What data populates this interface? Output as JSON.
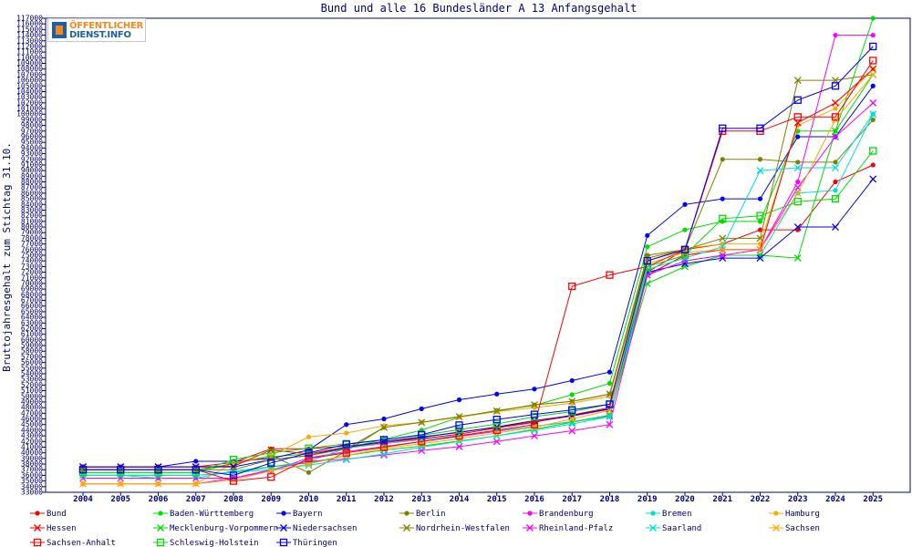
{
  "logo": {
    "line1": "ÖFFENTLICHER",
    "line2": "DIENST.INFO"
  },
  "chart_data": {
    "type": "line",
    "title": "Bund und alle 16 Bundesländer A 13 Anfangsgehalt",
    "ylabel": "Bruttojahresgehalt zum Stichtag 31.10.",
    "xlabel": "",
    "ylim": [
      33000,
      117000
    ],
    "ytick_step": 1000,
    "grid": false,
    "legend": "bottom",
    "x": [
      2004,
      2005,
      2006,
      2007,
      2008,
      2009,
      2010,
      2011,
      2012,
      2013,
      2014,
      2015,
      2016,
      2017,
      2018,
      2019,
      2020,
      2021,
      2022,
      2023,
      2024,
      2025
    ],
    "series": [
      {
        "name": "Bund",
        "color": "#ff0000",
        "marker": "dot",
        "values": [
          37500,
          37500,
          37500,
          37500,
          38300,
          40700,
          40700,
          41200,
          41800,
          42500,
          43300,
          44400,
          45400,
          46700,
          48000,
          72000,
          76000,
          77000,
          79500,
          79500,
          88000,
          91000
        ]
      },
      {
        "name": "Baden-Württemberg",
        "color": "#00dd00",
        "marker": "dot",
        "values": [
          36500,
          36500,
          36500,
          36500,
          38200,
          39300,
          39800,
          40800,
          42400,
          44000,
          46300,
          47500,
          48400,
          50300,
          52300,
          76500,
          79500,
          81000,
          81000,
          97000,
          97000,
          117000
        ]
      },
      {
        "name": "Bayern",
        "color": "#0000ff",
        "marker": "dot",
        "values": [
          37500,
          37500,
          37500,
          38500,
          38500,
          39000,
          40500,
          45000,
          46000,
          47800,
          49400,
          50400,
          51300,
          52800,
          54300,
          78500,
          84000,
          85000,
          85000,
          96000,
          96000,
          105000
        ]
      },
      {
        "name": "Berlin",
        "color": "#808000",
        "marker": "dot",
        "values": [
          37000,
          37000,
          37000,
          37000,
          38000,
          39500,
          36500,
          40300,
          44500,
          45400,
          46400,
          47400,
          48500,
          49100,
          50400,
          75000,
          76000,
          92000,
          92000,
          91500,
          91500,
          99000
        ]
      },
      {
        "name": "Brandenburg",
        "color": "#ff00ff",
        "marker": "dot",
        "values": [
          34500,
          34500,
          34500,
          34500,
          35500,
          36800,
          39100,
          40200,
          41100,
          42000,
          42900,
          43800,
          44700,
          45500,
          46600,
          71500,
          75000,
          76000,
          76000,
          88000,
          114000,
          114000
        ]
      },
      {
        "name": "Bremen",
        "color": "#00dddd",
        "marker": "dot",
        "values": [
          36000,
          36000,
          35500,
          35500,
          36800,
          37500,
          38500,
          40800,
          41600,
          42300,
          43100,
          43900,
          44700,
          45500,
          46400,
          71500,
          74000,
          75000,
          75000,
          86000,
          86500,
          100000
        ]
      },
      {
        "name": "Hamburg",
        "color": "#ffaa00",
        "marker": "dot",
        "values": [
          34500,
          34500,
          34500,
          34500,
          38200,
          39500,
          42800,
          43500,
          44800,
          45400,
          46300,
          47300,
          48000,
          48800,
          50000,
          74000,
          76200,
          77000,
          77000,
          98000,
          101000,
          108000
        ]
      },
      {
        "name": "Hessen",
        "color": "#ff0000",
        "marker": "x",
        "values": [
          37500,
          37500,
          37500,
          37500,
          37600,
          40500,
          39800,
          41000,
          41800,
          42700,
          43700,
          44500,
          45500,
          46500,
          47700,
          71500,
          75000,
          76000,
          76000,
          98500,
          102000,
          108000
        ]
      },
      {
        "name": "Mecklenburg-Vorpommern",
        "color": "#00dd00",
        "marker": "x",
        "values": [
          36000,
          36000,
          36000,
          36000,
          36500,
          37500,
          38200,
          39500,
          40500,
          41200,
          42100,
          43000,
          44200,
          45400,
          46700,
          70000,
          73000,
          75000,
          75000,
          74500,
          97000,
          107000
        ]
      },
      {
        "name": "Niedersachsen",
        "color": "#0000ff",
        "marker": "x",
        "values": [
          37500,
          37500,
          37500,
          37500,
          37500,
          38800,
          39500,
          41000,
          42000,
          42800,
          43600,
          44600,
          45700,
          46600,
          47800,
          72000,
          73500,
          74500,
          74500,
          80000,
          80000,
          88500
        ]
      },
      {
        "name": "Nordrhein-Westfalen",
        "color": "#808000",
        "marker": "x",
        "values": [
          37000,
          37000,
          37000,
          37000,
          37000,
          38800,
          39500,
          40700,
          44500,
          45400,
          46400,
          47400,
          48500,
          49100,
          50400,
          74500,
          76000,
          78000,
          78000,
          106000,
          106000,
          107000
        ]
      },
      {
        "name": "Rheinland-Pfalz",
        "color": "#ff00ff",
        "marker": "x",
        "values": [
          35500,
          35500,
          35500,
          35500,
          35500,
          37000,
          38500,
          38900,
          39600,
          40400,
          41100,
          42000,
          43000,
          43900,
          45000,
          71500,
          74000,
          75000,
          76000,
          87000,
          96000,
          102000
        ]
      },
      {
        "name": "Saarland",
        "color": "#00dddd",
        "marker": "x",
        "values": [
          36000,
          36000,
          36000,
          36000,
          36500,
          37000,
          37800,
          38800,
          39800,
          41000,
          42000,
          43000,
          44000,
          45100,
          46400,
          72500,
          74500,
          76500,
          90000,
          90500,
          90500,
          100000
        ]
      },
      {
        "name": "Sachsen",
        "color": "#ffaa00",
        "marker": "x",
        "values": [
          34500,
          34500,
          34500,
          34500,
          35200,
          36800,
          38000,
          39500,
          40800,
          41600,
          42500,
          43500,
          44500,
          46000,
          47500,
          73500,
          75500,
          76000,
          76000,
          86000,
          99000,
          107000
        ]
      },
      {
        "name": "Sachsen-Anhalt",
        "color": "#ff0000",
        "marker": "square",
        "values": [
          37000,
          37000,
          37000,
          37000,
          35000,
          35700,
          39000,
          40000,
          41000,
          42000,
          43000,
          44000,
          45000,
          69500,
          71500,
          73000,
          76000,
          97000,
          97000,
          99500,
          99500,
          109500
        ]
      },
      {
        "name": "Schleswig-Holstein",
        "color": "#00dd00",
        "marker": "square",
        "values": [
          36500,
          36500,
          36500,
          36500,
          38800,
          40000,
          40800,
          41600,
          42300,
          43100,
          44100,
          45100,
          46400,
          47300,
          48600,
          73000,
          75000,
          81500,
          82000,
          84500,
          85000,
          93500
        ]
      },
      {
        "name": "Thüringen",
        "color": "#0000ff",
        "marker": "square",
        "values": [
          37000,
          37000,
          37000,
          37000,
          36000,
          38200,
          40000,
          41500,
          42300,
          43200,
          44900,
          45900,
          46800,
          47600,
          48600,
          74000,
          76000,
          97500,
          97500,
          102500,
          105000,
          112000
        ]
      }
    ]
  }
}
